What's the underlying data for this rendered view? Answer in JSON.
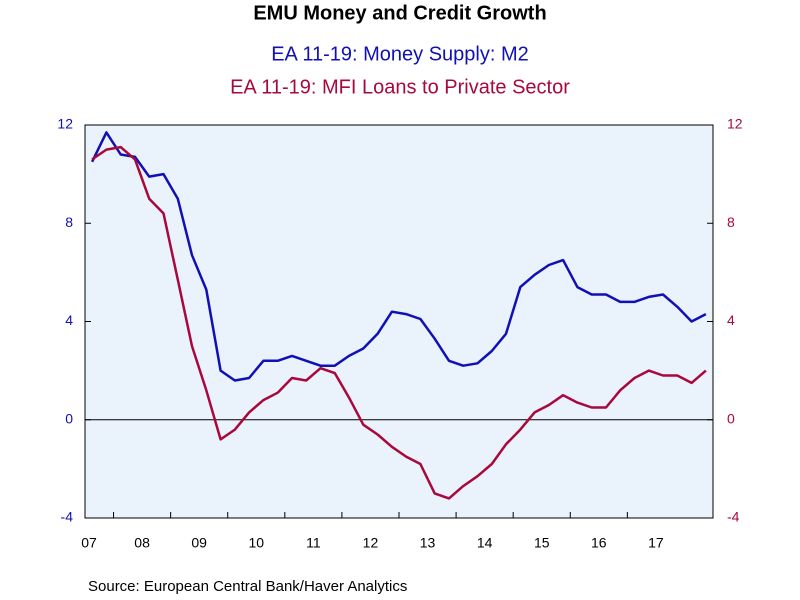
{
  "chart_data": {
    "type": "line",
    "title": "EMU Money and Credit Growth",
    "source": "Source:  European Central Bank/Haver Analytics",
    "categories": [
      "07",
      null,
      null,
      null,
      "08",
      null,
      null,
      null,
      "09",
      null,
      null,
      null,
      "10",
      null,
      null,
      null,
      "11",
      null,
      null,
      null,
      "12",
      null,
      null,
      null,
      "13",
      null,
      null,
      null,
      "14",
      null,
      null,
      null,
      "15",
      null,
      null,
      null,
      "16",
      null,
      null,
      null,
      "17",
      null,
      null,
      null
    ],
    "series": [
      {
        "name": "EA 11-19: Money Supply: M2",
        "color": "#1010b4",
        "values": [
          10.5,
          11.7,
          10.8,
          10.7,
          9.9,
          10.0,
          9.0,
          6.7,
          5.3,
          2.0,
          1.6,
          1.7,
          2.4,
          2.4,
          2.6,
          2.4,
          2.2,
          2.2,
          2.6,
          2.9,
          3.5,
          4.4,
          4.3,
          4.1,
          3.3,
          2.4,
          2.2,
          2.3,
          2.8,
          3.5,
          5.4,
          5.9,
          6.3,
          6.5,
          5.4,
          5.1,
          5.1,
          4.8,
          4.8,
          5.0,
          5.1,
          4.6,
          4.0,
          4.3
        ]
      },
      {
        "name": "EA 11-19: MFI Loans to Private Sector",
        "color": "#a8083c",
        "values": [
          10.6,
          11.0,
          11.1,
          10.6,
          9.0,
          8.4,
          5.7,
          3.0,
          1.2,
          -0.8,
          -0.4,
          0.3,
          0.8,
          1.1,
          1.7,
          1.6,
          2.1,
          1.9,
          0.9,
          -0.2,
          -0.6,
          -1.1,
          -1.5,
          -1.8,
          -3.0,
          -3.2,
          -2.7,
          -2.3,
          -1.8,
          -1.0,
          -0.4,
          0.3,
          0.6,
          1.0,
          0.7,
          0.5,
          0.5,
          1.2,
          1.7,
          2.0,
          1.8,
          1.8,
          1.5,
          2.0
        ]
      }
    ],
    "ylim": [
      -4,
      12
    ],
    "yticks": [
      -4,
      0,
      4,
      8,
      12
    ],
    "y2lim": [
      -4,
      12
    ],
    "y2ticks": [
      -4,
      0,
      4,
      8,
      12
    ],
    "grid": false
  }
}
